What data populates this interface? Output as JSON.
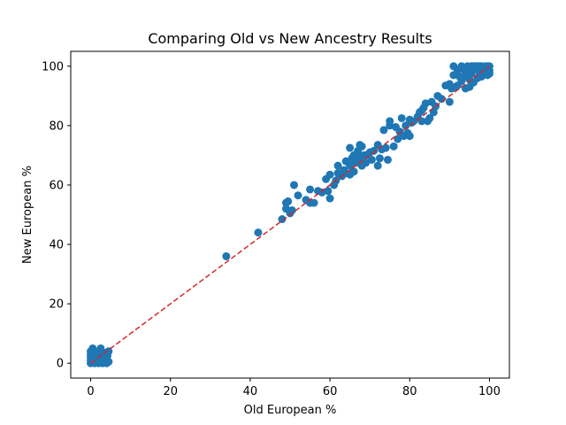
{
  "chart_data": {
    "type": "scatter",
    "title": "Comparing Old vs New Ancestry Results",
    "xlabel": "Old European %",
    "ylabel": "New European %",
    "xlim": [
      -5,
      105
    ],
    "ylim": [
      -5,
      105
    ],
    "x_ticks": [
      0,
      20,
      40,
      60,
      80,
      100
    ],
    "y_ticks": [
      0,
      20,
      40,
      60,
      80,
      100
    ],
    "x_tick_labels": [
      "0",
      "20",
      "40",
      "60",
      "80",
      "100"
    ],
    "y_tick_labels": [
      "0",
      "20",
      "40",
      "60",
      "80",
      "100"
    ],
    "grid": false,
    "marker_color": "#1f77b4",
    "reference_line": {
      "x": [
        0,
        100
      ],
      "y": [
        0,
        100
      ],
      "color": "#d62728",
      "style": "dashed"
    },
    "points": [
      [
        0,
        0
      ],
      [
        0,
        1
      ],
      [
        0,
        2
      ],
      [
        0,
        3
      ],
      [
        0,
        4
      ],
      [
        0.5,
        5
      ],
      [
        0.3,
        0.5
      ],
      [
        1,
        0
      ],
      [
        1,
        1.5
      ],
      [
        1,
        3
      ],
      [
        1.5,
        0.5
      ],
      [
        2,
        0
      ],
      [
        2,
        2
      ],
      [
        2,
        4
      ],
      [
        2.5,
        5
      ],
      [
        2.5,
        1
      ],
      [
        3,
        0
      ],
      [
        3,
        2
      ],
      [
        3.5,
        1
      ],
      [
        3.5,
        3.5
      ],
      [
        4,
        0
      ],
      [
        4,
        1.5
      ],
      [
        4.5,
        0.5
      ],
      [
        4.5,
        4
      ],
      [
        0.8,
        4.2
      ],
      [
        1.8,
        0.3
      ],
      [
        3.2,
        0.4
      ],
      [
        4.2,
        2.5
      ],
      [
        34,
        36
      ],
      [
        42,
        44
      ],
      [
        48,
        48.5
      ],
      [
        49,
        52
      ],
      [
        49,
        54
      ],
      [
        49.5,
        54.5
      ],
      [
        50,
        50.5
      ],
      [
        50.5,
        51.5
      ],
      [
        51,
        60
      ],
      [
        52,
        56.5
      ],
      [
        54,
        55
      ],
      [
        55,
        54
      ],
      [
        55,
        58.5
      ],
      [
        56,
        54
      ],
      [
        57,
        58
      ],
      [
        58,
        57.5
      ],
      [
        59,
        62
      ],
      [
        59.5,
        58
      ],
      [
        60,
        55.5
      ],
      [
        60,
        63.5
      ],
      [
        61,
        60
      ],
      [
        61.5,
        61.5
      ],
      [
        62,
        66.5
      ],
      [
        62,
        64
      ],
      [
        63,
        63
      ],
      [
        63.5,
        65
      ],
      [
        64,
        68
      ],
      [
        64,
        64
      ],
      [
        65,
        63.5
      ],
      [
        65,
        72.5
      ],
      [
        65,
        66.5
      ],
      [
        65.5,
        69
      ],
      [
        66,
        64.5
      ],
      [
        66,
        70
      ],
      [
        66.5,
        67.5
      ],
      [
        67,
        71.5
      ],
      [
        67.5,
        73.5
      ],
      [
        67.5,
        69
      ],
      [
        68,
        66.5
      ],
      [
        68,
        73
      ],
      [
        68.5,
        70
      ],
      [
        69,
        67.5
      ],
      [
        69,
        70
      ],
      [
        70,
        71
      ],
      [
        70.5,
        68.5
      ],
      [
        71,
        71.5
      ],
      [
        72,
        73.5
      ],
      [
        72,
        66.5
      ],
      [
        72.5,
        69
      ],
      [
        73,
        72
      ],
      [
        73.5,
        78.5
      ],
      [
        74,
        72.5
      ],
      [
        74.5,
        68.5
      ],
      [
        75,
        80
      ],
      [
        75,
        81.5
      ],
      [
        76,
        73
      ],
      [
        76.5,
        79.5
      ],
      [
        77,
        75.5
      ],
      [
        77.5,
        78
      ],
      [
        78,
        82.5
      ],
      [
        78.5,
        76.5
      ],
      [
        79,
        80
      ],
      [
        79.5,
        77.5
      ],
      [
        80,
        82
      ],
      [
        80,
        76.5
      ],
      [
        80.5,
        81
      ],
      [
        81,
        81.5
      ],
      [
        82,
        83
      ],
      [
        82.5,
        84.5
      ],
      [
        83,
        81.5
      ],
      [
        83,
        85
      ],
      [
        83.5,
        86
      ],
      [
        84,
        87.5
      ],
      [
        84.5,
        81.5
      ],
      [
        85,
        82.5
      ],
      [
        85.5,
        88
      ],
      [
        86,
        84.5
      ],
      [
        86.5,
        86.5
      ],
      [
        87,
        90
      ],
      [
        88,
        89
      ],
      [
        89,
        93.5
      ],
      [
        90,
        88
      ],
      [
        90,
        94
      ],
      [
        90.5,
        92.5
      ],
      [
        91,
        97
      ],
      [
        91,
        100
      ],
      [
        91.5,
        93
      ],
      [
        92,
        93.5
      ],
      [
        92,
        98.5
      ],
      [
        92.5,
        96.5
      ],
      [
        93,
        100
      ],
      [
        93,
        95
      ],
      [
        93.5,
        99
      ],
      [
        94,
        92.5
      ],
      [
        94,
        97.5
      ],
      [
        94.5,
        100
      ],
      [
        95,
        99
      ],
      [
        95,
        93
      ],
      [
        95,
        95.5
      ],
      [
        95.5,
        97.5
      ],
      [
        96,
        100
      ],
      [
        96,
        94.5
      ],
      [
        96.5,
        99
      ],
      [
        97,
        96
      ],
      [
        97,
        100
      ],
      [
        97.5,
        98
      ],
      [
        98,
        100
      ],
      [
        98,
        96.5
      ],
      [
        98.5,
        99.5
      ],
      [
        99,
        98
      ],
      [
        99,
        100
      ],
      [
        99.5,
        97
      ],
      [
        100,
        100
      ],
      [
        100,
        98.5
      ],
      [
        100,
        97.5
      ],
      [
        96.5,
        100
      ],
      [
        97.5,
        100
      ],
      [
        99.5,
        100
      ],
      [
        98.5,
        97.5
      ],
      [
        95.5,
        100
      ],
      [
        94.5,
        98
      ],
      [
        93.5,
        96.5
      ]
    ]
  }
}
